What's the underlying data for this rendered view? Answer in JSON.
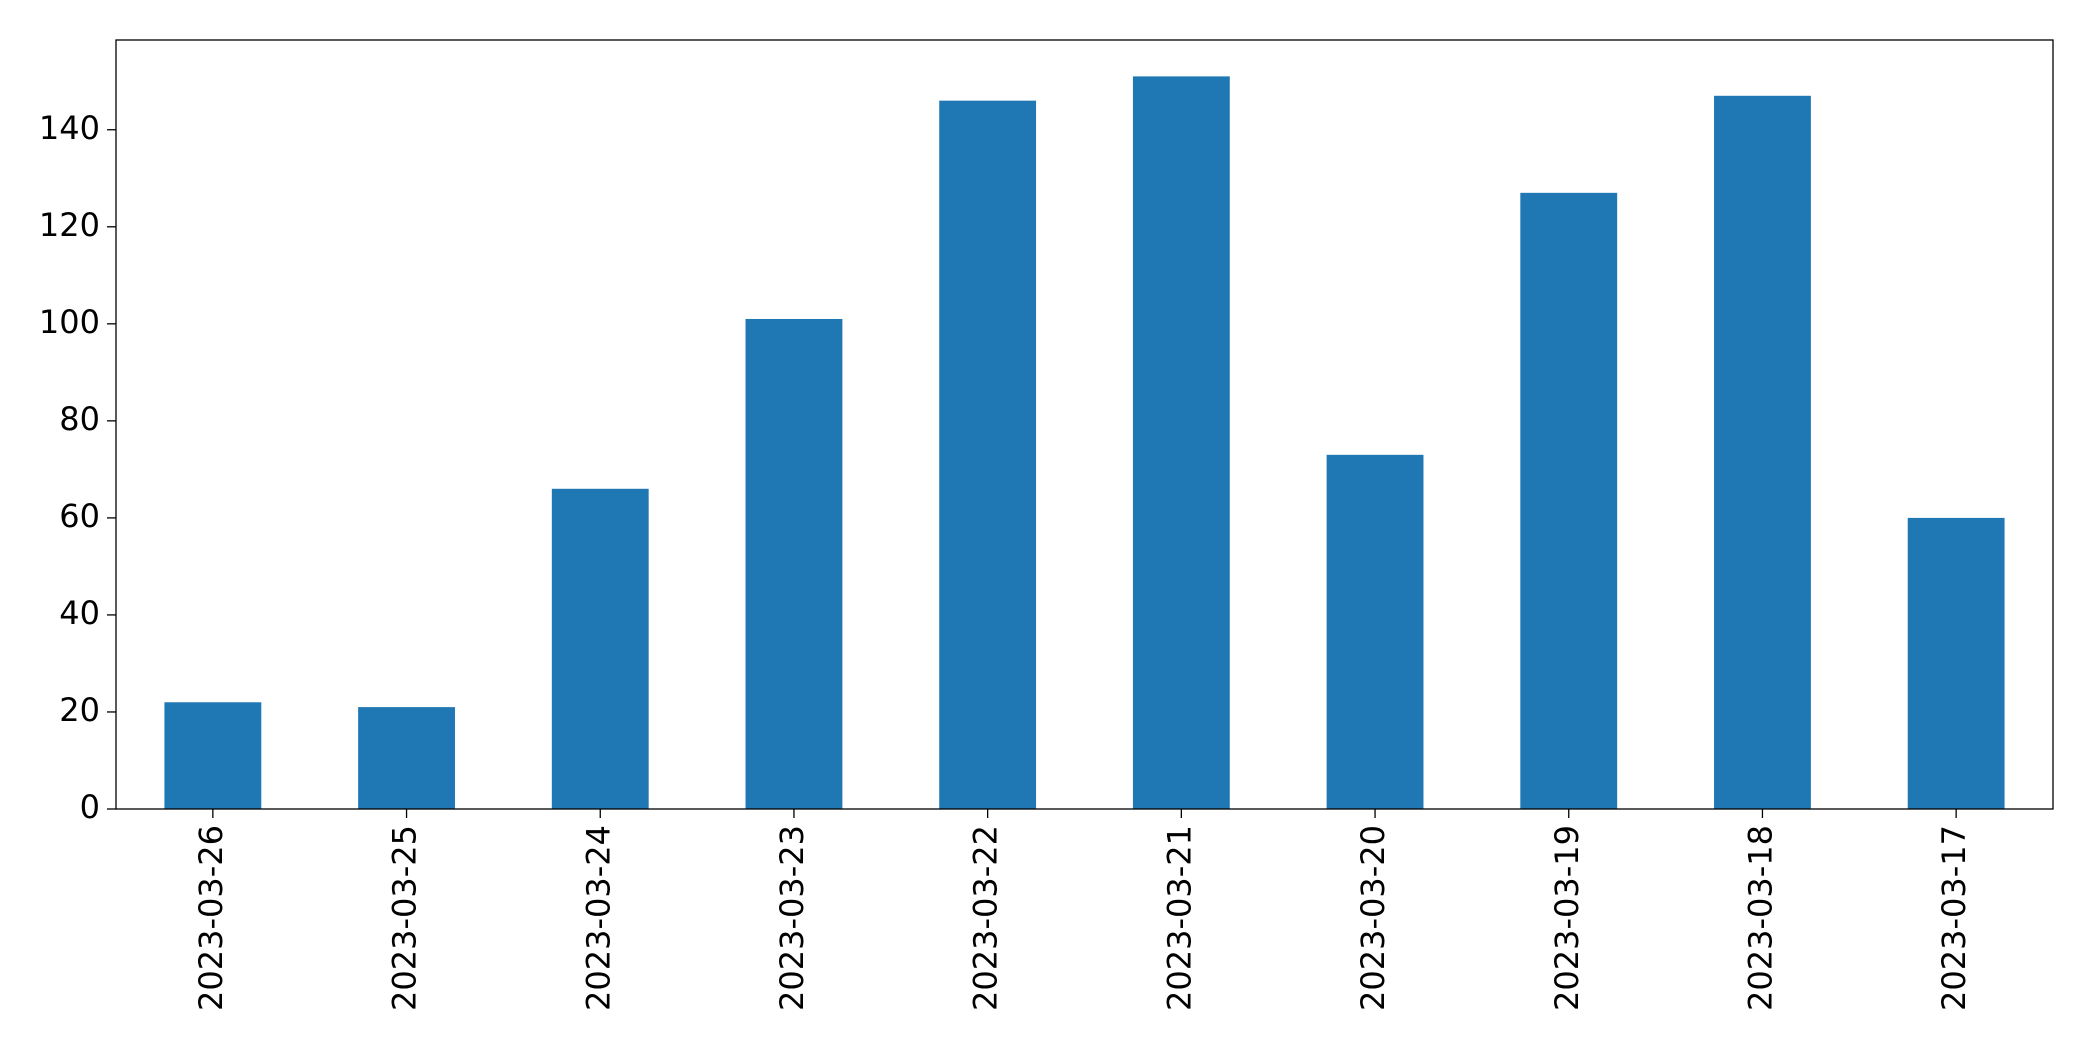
{
  "chart_data": {
    "type": "bar",
    "categories": [
      "2023-03-26",
      "2023-03-25",
      "2023-03-24",
      "2023-03-23",
      "2023-03-22",
      "2023-03-21",
      "2023-03-20",
      "2023-03-19",
      "2023-03-18",
      "2023-03-17"
    ],
    "values": [
      22,
      21,
      66,
      101,
      146,
      151,
      73,
      127,
      147,
      60
    ],
    "color": "#1f77b4",
    "ylim": [
      0,
      158.5
    ],
    "yticks": [
      0,
      20,
      40,
      60,
      80,
      100,
      120,
      140
    ],
    "grid": false
  }
}
